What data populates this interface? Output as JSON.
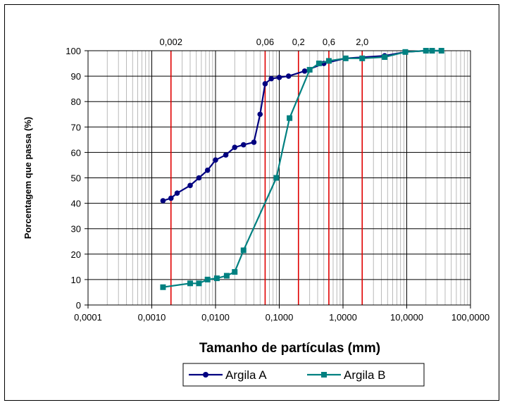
{
  "chart_data": {
    "type": "line",
    "title": "",
    "xlabel": "Tamanho de partículas (mm)",
    "ylabel": "Porcentagem que passa (%)",
    "x_scale": "log",
    "xlim": [
      0.0001,
      100
    ],
    "ylim": [
      0,
      100
    ],
    "x_ticks": [
      "0,0001",
      "0,0010",
      "0,0100",
      "0,1000",
      "1,0000",
      "10,0000",
      "100,0000"
    ],
    "y_ticks": [
      "0",
      "10",
      "20",
      "30",
      "40",
      "50",
      "60",
      "70",
      "80",
      "90",
      "100"
    ],
    "grid": true,
    "legend_position": "bottom",
    "reference_lines": [
      {
        "x": 0.002,
        "label": "0,002"
      },
      {
        "x": 0.06,
        "label": "0,06"
      },
      {
        "x": 0.2,
        "label": "0,2"
      },
      {
        "x": 0.6,
        "label": "0,6"
      },
      {
        "x": 2.0,
        "label": "2,0"
      }
    ],
    "series": [
      {
        "name": "Argila A",
        "color": "#000080",
        "marker": "circle",
        "x": [
          0.0015,
          0.002,
          0.0025,
          0.004,
          0.0055,
          0.0075,
          0.01,
          0.0145,
          0.02,
          0.0275,
          0.04,
          0.05,
          0.06,
          0.075,
          0.1,
          0.14,
          0.25,
          0.5,
          1.1,
          4.5,
          9.5,
          20,
          25,
          35
        ],
        "y": [
          41,
          42,
          44,
          47,
          50,
          53,
          57,
          59,
          62,
          63,
          64,
          75,
          87,
          89,
          89.5,
          90,
          92,
          95,
          97,
          98,
          99.5,
          100,
          100,
          100
        ]
      },
      {
        "name": "Argila B",
        "color": "#008080",
        "marker": "square",
        "x": [
          0.0015,
          0.004,
          0.0055,
          0.0075,
          0.0105,
          0.015,
          0.02,
          0.0275,
          0.09,
          0.145,
          0.3,
          0.42,
          0.6,
          1.1,
          2.0,
          4.5,
          9.5,
          20,
          25,
          35
        ],
        "y": [
          7,
          8.5,
          8.5,
          10,
          10.5,
          11.5,
          13,
          21.5,
          50,
          73.5,
          92.5,
          95,
          96,
          97,
          97,
          97.5,
          99.5,
          100,
          100,
          100
        ]
      }
    ]
  }
}
